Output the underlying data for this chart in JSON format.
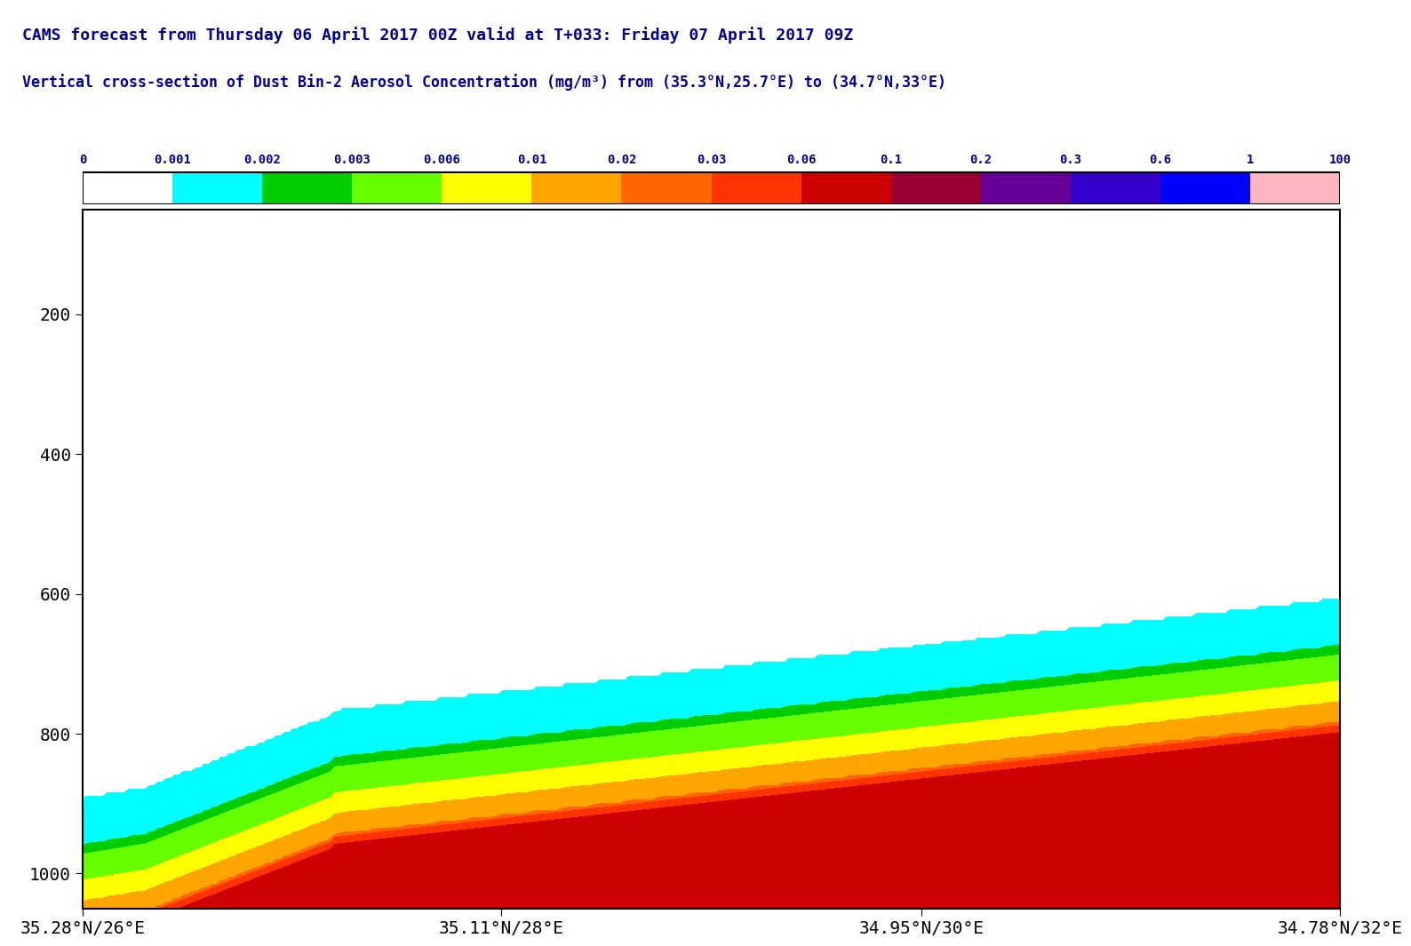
{
  "title_line1": "CAMS forecast from Thursday 06 April 2017 00Z valid at T+033: Friday 07 April 2017 09Z",
  "title_line2": "Vertical cross-section of Dust Bin-2 Aerosol Concentration (mg/m³) from (35.3°N,25.7°E) to (34.7°N,33°E)",
  "title_color": "#00008B",
  "colorbar_levels": [
    0,
    0.001,
    0.002,
    0.003,
    0.006,
    0.01,
    0.02,
    0.03,
    0.06,
    0.1,
    0.2,
    0.3,
    0.6,
    1,
    100
  ],
  "colorbar_colors": [
    "#FFFFFF",
    "#00FFFF",
    "#00CC00",
    "#66FF00",
    "#FFFF00",
    "#FFA500",
    "#FF6600",
    "#FF3300",
    "#CC0000",
    "#990033",
    "#660099",
    "#3300CC",
    "#0000FF",
    "#FFB6C1"
  ],
  "ylabel": "",
  "yticks": [
    200,
    400,
    600,
    800,
    1000
  ],
  "ylim_min": 50,
  "ylim_max": 1050,
  "xtick_labels": [
    "35.28°N/26°E",
    "35.11°N/28°E",
    "34.95°N/30°E",
    "34.78°N/32°E"
  ],
  "xtick_positions": [
    0.0,
    0.333,
    0.667,
    1.0
  ],
  "background_color": "#FFFFFF",
  "plot_bg_color": "#FFFFFF"
}
